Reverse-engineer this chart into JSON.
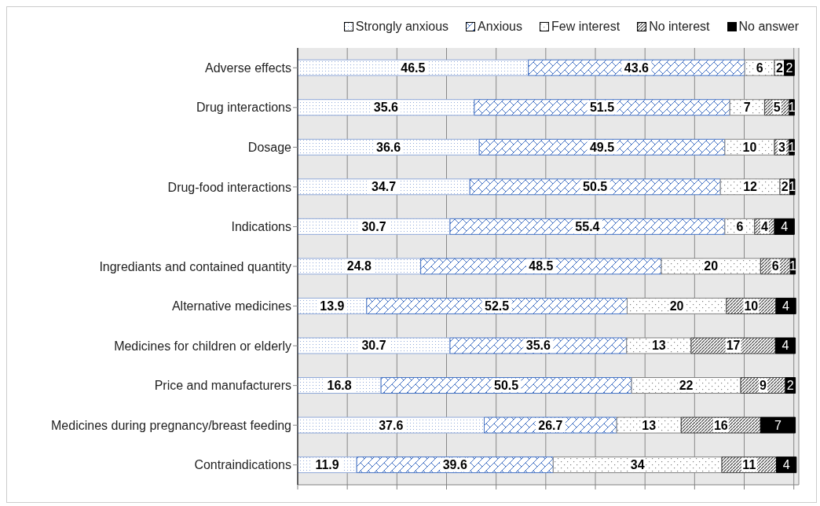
{
  "chart_data": {
    "type": "bar",
    "orientation": "horizontal",
    "stacked": true,
    "data_labels": true,
    "grid": "x",
    "legend": "top right",
    "tick_labels": "y",
    "categories": [
      "Adverse effects",
      "Drug interactions",
      "Dosage",
      "Drug-food interactions",
      "Indications",
      "Ingrediants and contained quantity",
      "Alternative medicines",
      "Medicines for children or elderly",
      "Price and manufacturers",
      "Medicines during pregnancy/breast feeding",
      "Contraindications"
    ],
    "xlim": [
      0,
      101
    ],
    "xticks": [
      {
        "value": 0,
        "label": null
      },
      {
        "value": 10,
        "label": null
      },
      {
        "value": 20,
        "label": null
      },
      {
        "value": 30,
        "label": null
      },
      {
        "value": 40,
        "label": null
      },
      {
        "value": 50,
        "label": null
      },
      {
        "value": 60,
        "label": null
      },
      {
        "value": 70,
        "label": null
      },
      {
        "value": 80,
        "label": null
      },
      {
        "value": 90,
        "label": null
      },
      {
        "value": 100,
        "label": null
      }
    ],
    "series": [
      {
        "name": "Strongly anxious",
        "color": "#8fa8d8",
        "values": [
          46.5,
          35.6,
          36.6,
          34.7,
          30.7,
          24.8,
          13.9,
          30.7,
          16.8,
          37.6,
          11.9
        ]
      },
      {
        "name": "Anxious",
        "color": "#4472c4",
        "values": [
          43.6,
          51.5,
          49.5,
          50.5,
          55.4,
          48.5,
          52.5,
          35.6,
          50.5,
          26.7,
          39.6
        ]
      },
      {
        "name": "Few interest",
        "color": "#808080",
        "values": [
          6,
          7,
          10,
          12,
          6,
          20,
          20,
          13,
          22,
          13,
          34
        ]
      },
      {
        "name": "No interest",
        "color": "#404040",
        "values": [
          2,
          5,
          3,
          2,
          4,
          6,
          10,
          17,
          9,
          16,
          11
        ]
      },
      {
        "name": "No answer",
        "color": "#000000",
        "values": [
          2,
          1,
          1,
          1,
          4,
          1,
          4,
          4,
          2,
          7,
          4
        ]
      }
    ]
  }
}
